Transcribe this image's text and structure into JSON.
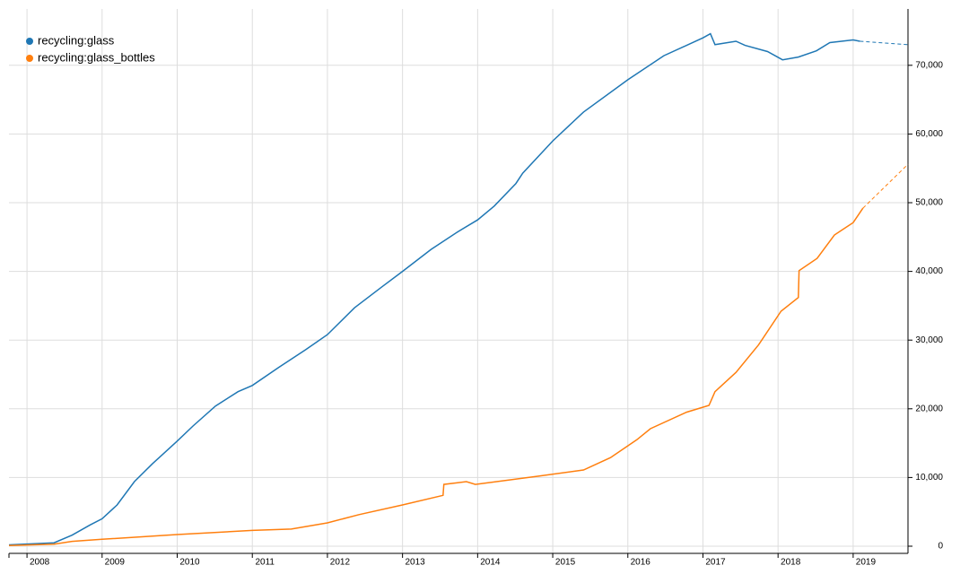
{
  "chart_data": {
    "type": "line",
    "xlim": [
      2007.76,
      2019.73
    ],
    "xticks": [
      2008,
      2009,
      2010,
      2011,
      2012,
      2013,
      2014,
      2015,
      2016,
      2017,
      2018,
      2019
    ],
    "ylim": [
      0,
      78200
    ],
    "yticks": [
      0,
      {
        "value": 10000,
        "label": "10,000"
      },
      {
        "value": 20000,
        "label": "20,000"
      },
      {
        "value": 30000,
        "label": "30,000"
      },
      {
        "value": 40000,
        "label": "40,000"
      },
      {
        "value": 50000,
        "label": "50,000"
      },
      {
        "value": 60000,
        "label": "60,000"
      },
      {
        "value": 70000,
        "label": "70,000"
      }
    ],
    "grid": true,
    "legend": "top-left",
    "series": [
      {
        "name": "recycling:glass",
        "color": "#1f77b4",
        "x": [
          2007.76,
          2008.36,
          2008.6,
          2008.84,
          2009,
          2009.2,
          2009.43,
          2009.67,
          2010,
          2010.21,
          2010.51,
          2010.81,
          2011,
          2011.35,
          2011.71,
          2012,
          2012.36,
          2012.72,
          2013,
          2013.38,
          2013.74,
          2014,
          2014.22,
          2014.51,
          2014.6,
          2015,
          2015.41,
          2016,
          2016.48,
          2017,
          2017.1,
          2017.16,
          2017.44,
          2017.56,
          2017.86,
          2018.06,
          2018.27,
          2018.51,
          2018.69,
          2019,
          2019.09
        ],
        "values": [
          200,
          500,
          1600,
          3100,
          4000,
          6000,
          9400,
          12000,
          15300,
          17500,
          20400,
          22500,
          23400,
          26000,
          28600,
          30800,
          34700,
          37700,
          40000,
          43200,
          45800,
          47500,
          49500,
          52800,
          54300,
          59000,
          63200,
          67900,
          71400,
          74000,
          74600,
          73000,
          73500,
          72900,
          72000,
          70800,
          71200,
          72100,
          73300,
          73700,
          73500
        ],
        "forecast_x": [
          2019.09,
          2019.73
        ],
        "forecast_values": [
          73500,
          73000
        ]
      },
      {
        "name": "recycling:glass_bottles",
        "color": "#ff7f0e",
        "x": [
          2007.76,
          2008.36,
          2008.6,
          2009,
          2010,
          2011,
          2011.52,
          2012,
          2012.42,
          2013,
          2013.54,
          2013.55,
          2013.85,
          2013.97,
          2014.81,
          2015.41,
          2015.77,
          2016.12,
          2016.3,
          2016.78,
          2017.08,
          2017.16,
          2017.44,
          2017.74,
          2018.04,
          2018.27,
          2018.28,
          2018.52,
          2018.75,
          2019,
          2019.13
        ],
        "values": [
          100,
          300,
          700,
          1000,
          1700,
          2300,
          2500,
          3400,
          4600,
          6000,
          7400,
          9000,
          9400,
          9000,
          10200,
          11100,
          12900,
          15500,
          17100,
          19500,
          20500,
          22500,
          25300,
          29300,
          34200,
          36200,
          40100,
          41900,
          45300,
          47100,
          49200
        ],
        "forecast_x": [
          2019.13,
          2019.73
        ],
        "forecast_values": [
          49200,
          55600
        ]
      }
    ]
  }
}
